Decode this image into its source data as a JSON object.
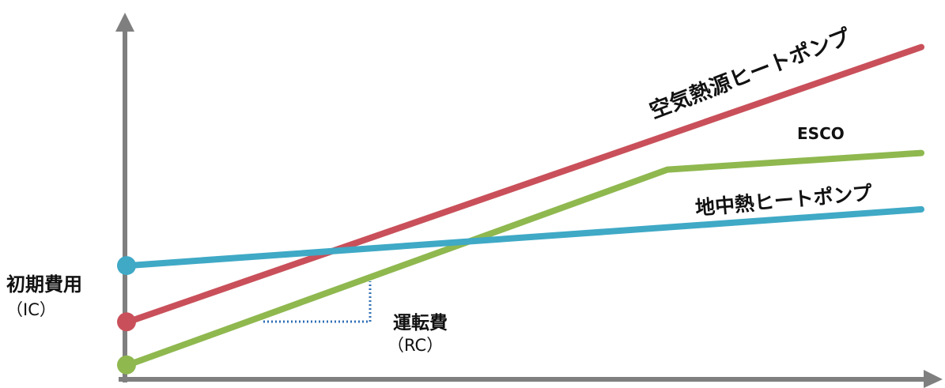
{
  "header": {
    "title_cropped": ""
  },
  "chart_data": {
    "type": "line",
    "title": "",
    "xlabel": "",
    "ylabel": "初期費用",
    "ylabel_sub": "（IC）",
    "annotation": {
      "label": "運転費",
      "sub": "（RC）"
    },
    "xlim": [
      0,
      100
    ],
    "ylim": [
      0,
      100
    ],
    "grid": false,
    "series": [
      {
        "name": "空気熱源ヒートポンプ",
        "color": "#c9505a",
        "points": [
          [
            0,
            14
          ],
          [
            100,
            97
          ]
        ]
      },
      {
        "name": "ESCO",
        "color": "#8fb84f",
        "points": [
          [
            0,
            1
          ],
          [
            68,
            60
          ],
          [
            100,
            65
          ]
        ]
      },
      {
        "name": "地中熱ヒートポンプ",
        "color": "#3fa9c6",
        "points": [
          [
            0,
            31
          ],
          [
            100,
            48
          ]
        ]
      }
    ],
    "axis_color": "#7f7f7f",
    "annotation_color": "#2f6fb5"
  }
}
